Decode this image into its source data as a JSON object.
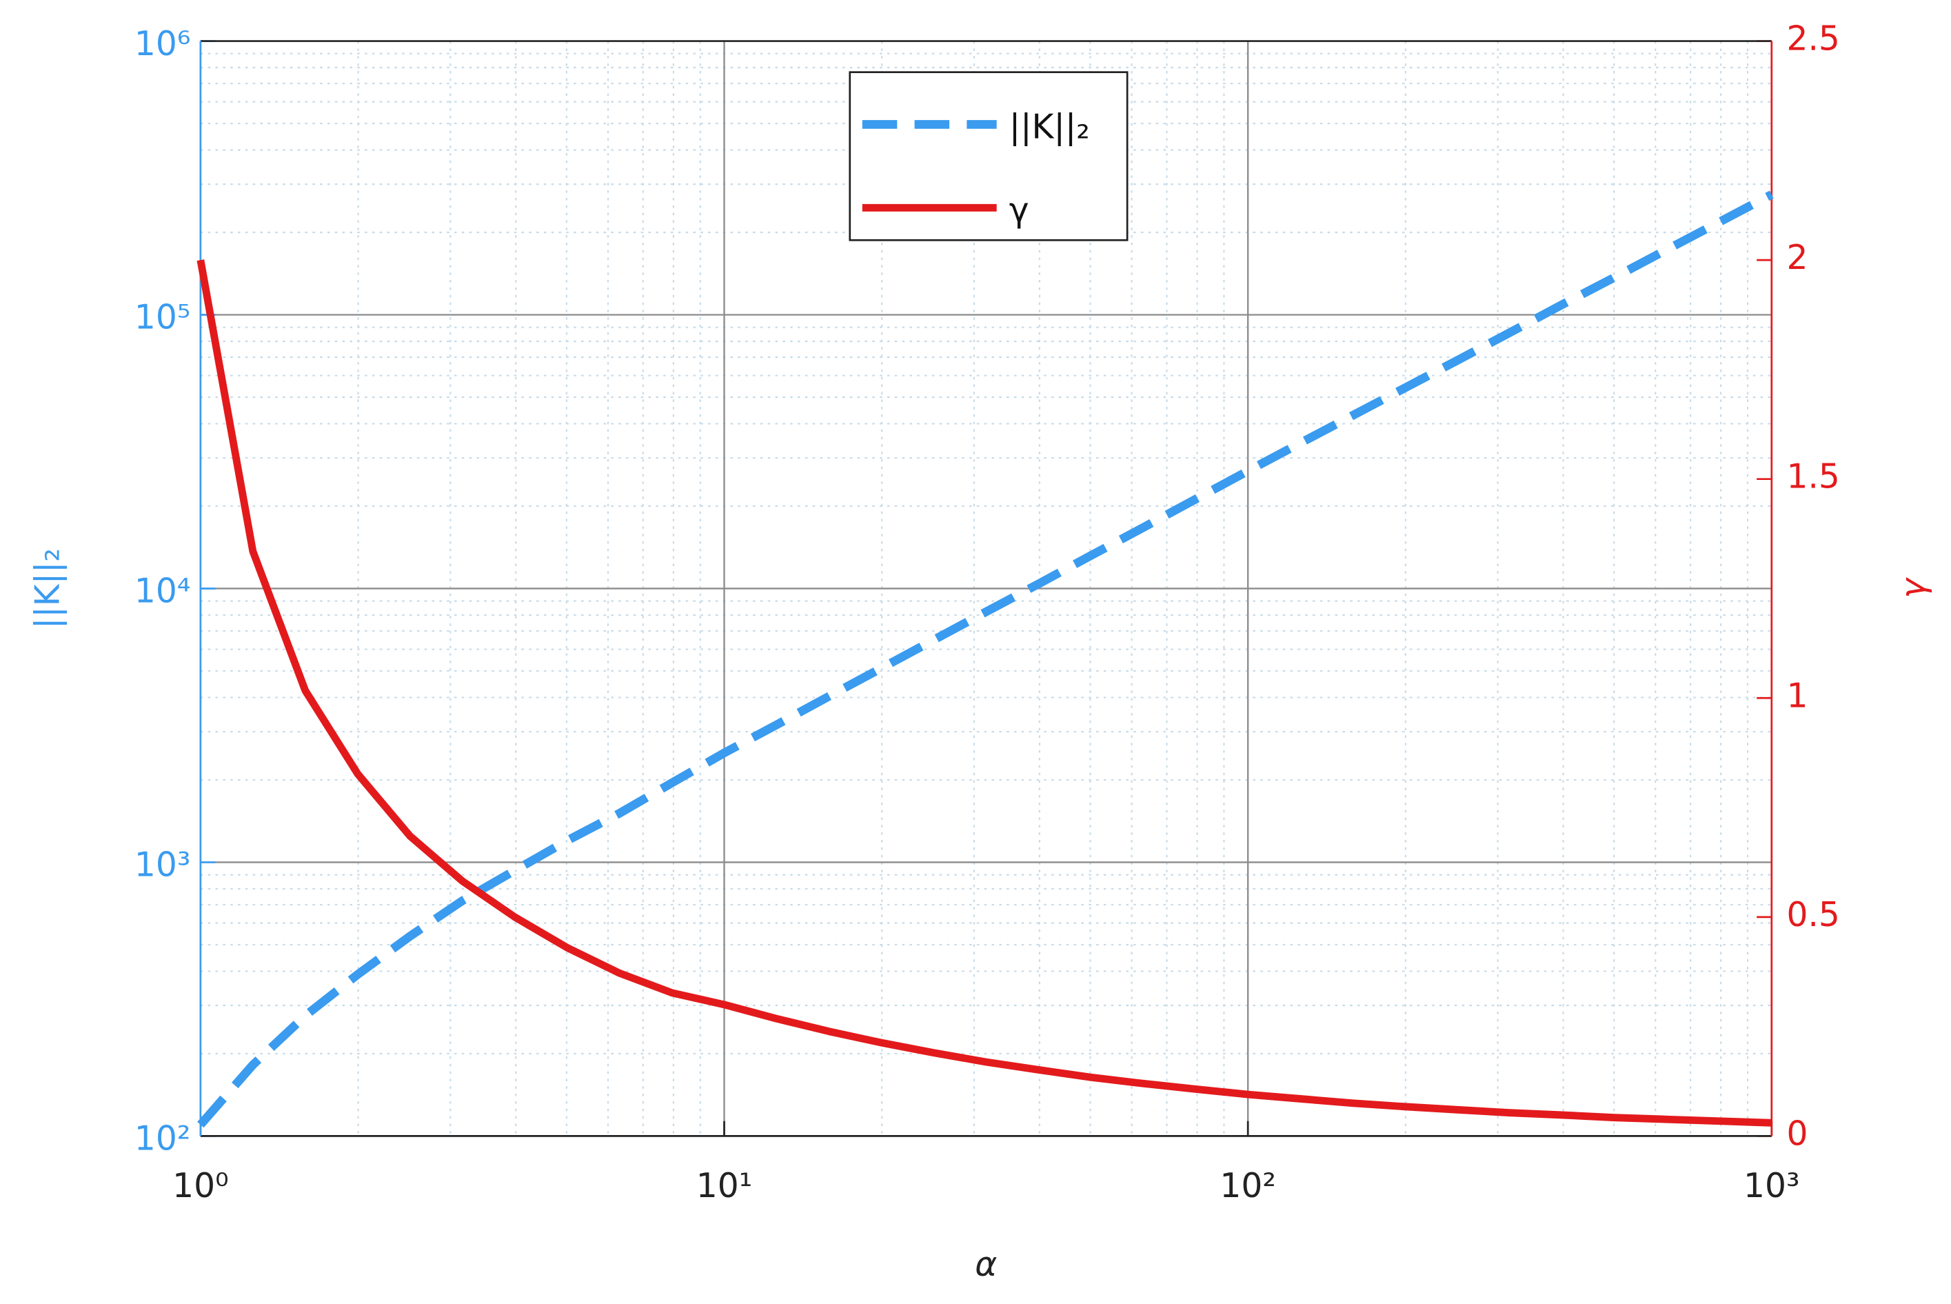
{
  "chart_data": {
    "type": "line",
    "xlabel": "α",
    "ylabel": "||K||₂",
    "y2label": "γ",
    "x": [
      1,
      1.259,
      1.585,
      1.995,
      2.512,
      3.162,
      3.981,
      5.012,
      6.31,
      7.943,
      10,
      12.59,
      15.85,
      19.95,
      25.12,
      31.62,
      39.81,
      50.12,
      63.1,
      79.43,
      100,
      125.9,
      158.5,
      199.5,
      251.2,
      316.2,
      398.1,
      501.2,
      631,
      794.3,
      1000
    ],
    "series": [
      {
        "name": "||K||₂",
        "color": "#3a9bef",
        "dashed": true,
        "axis": "y",
        "values": [
          110,
          182,
          275,
          389,
          537,
          724,
          933,
          1200,
          1510,
          1950,
          2510,
          3180,
          4040,
          5120,
          6490,
          8220,
          10400,
          13200,
          16700,
          21200,
          26900,
          34000,
          42900,
          54100,
          68200,
          86100,
          109000,
          137000,
          173000,
          218000,
          275000
        ]
      },
      {
        "name": "γ",
        "color": "#e31a1c",
        "dashed": false,
        "axis": "y2",
        "values": [
          2.0,
          1.335,
          1.017,
          0.827,
          0.685,
          0.582,
          0.5,
          0.43,
          0.372,
          0.327,
          0.3,
          0.268,
          0.239,
          0.213,
          0.19,
          0.169,
          0.151,
          0.134,
          0.12,
          0.107,
          0.095,
          0.085,
          0.075,
          0.067,
          0.06,
          0.053,
          0.048,
          0.042,
          0.038,
          0.034,
          0.03
        ]
      }
    ],
    "xscale": "log",
    "yscale": "log",
    "xlim": [
      1,
      1000
    ],
    "xticks": [
      {
        "value": 1,
        "label": "10⁰"
      },
      {
        "value": 10,
        "label": "10¹"
      },
      {
        "value": 100,
        "label": "10²"
      },
      {
        "value": 1000,
        "label": "10³"
      }
    ],
    "ylim": [
      100,
      1000000
    ],
    "yticks": [
      {
        "value": 100,
        "label": "10²"
      },
      {
        "value": 1000,
        "label": "10³"
      },
      {
        "value": 10000,
        "label": "10⁴"
      },
      {
        "value": 100000,
        "label": "10⁵"
      },
      {
        "value": 1000000,
        "label": "10⁶"
      }
    ],
    "y2lim": [
      0,
      2.5
    ],
    "y2ticks": [
      0,
      0.5,
      1,
      1.5,
      2,
      2.5
    ],
    "grid": true,
    "minor_grid": true,
    "legend": "upper center"
  }
}
